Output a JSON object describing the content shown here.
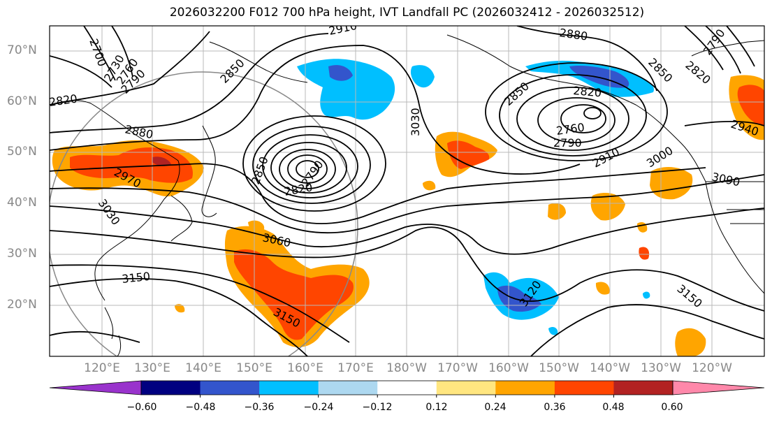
{
  "title": "2026032200 F012 700 hPa height, IVT Landfall PC (2026032412 - 2026032512)",
  "lat_labels": [
    "70°N",
    "60°N",
    "50°N",
    "40°N",
    "30°N",
    "20°N"
  ],
  "lon_labels": [
    "120°E",
    "130°E",
    "140°E",
    "150°E",
    "160°E",
    "170°E",
    "180°W",
    "170°W",
    "160°W",
    "150°W",
    "140°W",
    "130°W",
    "120°W"
  ],
  "contour_labels": [
    "2910",
    "2880",
    "2700",
    "2730",
    "2760",
    "2790",
    "2820",
    "2850",
    "2880",
    "2970",
    "3030",
    "2850",
    "2820",
    "2790",
    "3060",
    "3150",
    "3150",
    "3030",
    "2850",
    "2820",
    "2760",
    "2790",
    "2910",
    "3000",
    "3090",
    "2940",
    "2850",
    "2820",
    "2790",
    "3120",
    "3150"
  ],
  "colorbar": {
    "ticks": [
      "−0.60",
      "−0.48",
      "−0.36",
      "−0.24",
      "−0.12",
      "0.12",
      "0.24",
      "0.36",
      "0.48",
      "0.60"
    ],
    "colors": [
      "#9933cc",
      "#000080",
      "#3355cc",
      "#00bfff",
      "#add8f0",
      "#ffffff",
      "#ffe680",
      "#ffa500",
      "#ff4500",
      "#b22222",
      "#ff88aa"
    ]
  },
  "colors": {
    "positive_low": "#ffa500",
    "positive_mid": "#ff4500",
    "negative_low": "#00bfff",
    "negative_mid": "#3355cc"
  }
}
